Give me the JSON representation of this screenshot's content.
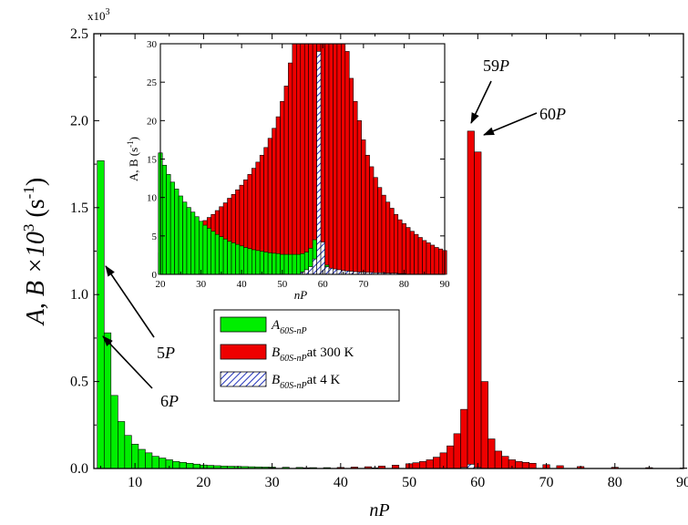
{
  "chart_data": [
    {
      "type": "bar",
      "multiplier_label": "x10",
      "multiplier_exp": "3",
      "xlabel": "nP",
      "ylabel_text": "A, B ×10",
      "ylabel_exp": "3",
      "ylabel_unit": " (s",
      "ylabel_unit_exp": "-1",
      "ylabel_close": ")",
      "xlim": [
        4,
        90
      ],
      "ylim": [
        0,
        2.5
      ],
      "xticks": [
        "10",
        "20",
        "30",
        "40",
        "50",
        "60",
        "70",
        "80",
        "90"
      ],
      "yticks": [
        "0.0",
        "0.5",
        "1.0",
        "1.5",
        "2.0",
        "2.5"
      ],
      "series": [
        {
          "name_main": "A",
          "name_sub": "60S-nP",
          "name_suffix": "",
          "color": "#00ee00",
          "x": [
            5,
            6,
            7,
            8,
            9,
            10,
            11,
            12,
            13,
            14,
            15,
            16,
            17,
            18,
            19,
            20,
            21,
            22,
            23,
            24,
            25,
            26,
            27,
            28,
            29,
            30,
            32,
            34,
            36,
            38,
            40,
            45,
            50,
            55,
            58,
            59,
            60
          ],
          "values": [
            1.77,
            0.78,
            0.42,
            0.27,
            0.19,
            0.14,
            0.11,
            0.09,
            0.07,
            0.06,
            0.05,
            0.04,
            0.035,
            0.03,
            0.025,
            0.02,
            0.018,
            0.016,
            0.014,
            0.013,
            0.012,
            0.011,
            0.01,
            0.009,
            0.008,
            0.008,
            0.007,
            0.006,
            0.005,
            0.005,
            0.004,
            0.004,
            0.003,
            0.003,
            0.005,
            0.006,
            0.004
          ]
        },
        {
          "name_main": "B",
          "name_sub": "60S-nP",
          "name_suffix": "at 300 K",
          "color": "#ee0000",
          "x": [
            30,
            35,
            40,
            42,
            44,
            46,
            48,
            50,
            51,
            52,
            53,
            54,
            55,
            56,
            57,
            58,
            59,
            60,
            61,
            62,
            63,
            64,
            65,
            66,
            67,
            68,
            70,
            72,
            75,
            80,
            85,
            90
          ],
          "values": [
            0.003,
            0.004,
            0.006,
            0.008,
            0.01,
            0.014,
            0.019,
            0.027,
            0.033,
            0.04,
            0.05,
            0.065,
            0.09,
            0.13,
            0.2,
            0.34,
            1.94,
            1.82,
            0.5,
            0.17,
            0.1,
            0.07,
            0.05,
            0.04,
            0.035,
            0.03,
            0.022,
            0.016,
            0.011,
            0.007,
            0.005,
            0.003
          ]
        },
        {
          "name_main": "B",
          "name_sub": "60S-nP",
          "name_suffix": "at  4 K",
          "color": "#3344cc",
          "x": [
            58,
            59,
            60
          ],
          "values": [
            0.006,
            0.024,
            0.006
          ]
        }
      ],
      "annotations": [
        {
          "text": "5P",
          "x": 5,
          "y": 1.05
        },
        {
          "text": "6P",
          "x": 6,
          "y": 0.73
        },
        {
          "text": "59P",
          "x": 59,
          "y": 1.94
        },
        {
          "text": "60P",
          "x": 60,
          "y": 1.82
        }
      ]
    },
    {
      "type": "bar",
      "xlabel": "nP",
      "ylabel_text": "A, B (s",
      "ylabel_exp": "-1",
      "ylabel_close": ")",
      "xlim": [
        20,
        90
      ],
      "ylim": [
        0,
        30
      ],
      "xticks": [
        "20",
        "30",
        "40",
        "50",
        "60",
        "70",
        "80",
        "90"
      ],
      "yticks": [
        "0",
        "5",
        "10",
        "15",
        "20",
        "25",
        "30"
      ],
      "series": [
        {
          "name": "A",
          "color": "#00ee00",
          "x": [
            20,
            21,
            22,
            23,
            24,
            25,
            26,
            27,
            28,
            29,
            30,
            31,
            32,
            33,
            34,
            35,
            36,
            37,
            38,
            39,
            40,
            41,
            42,
            43,
            44,
            45,
            46,
            47,
            48,
            49,
            50,
            51,
            52,
            53,
            54,
            55,
            56,
            57,
            58,
            59,
            60,
            61,
            62,
            63,
            64,
            65
          ],
          "values": [
            15.8,
            14.2,
            13.0,
            12.0,
            11.1,
            10.2,
            9.4,
            8.7,
            8.1,
            7.5,
            6.9,
            6.4,
            6.0,
            5.6,
            5.2,
            4.9,
            4.6,
            4.3,
            4.1,
            3.9,
            3.7,
            3.5,
            3.35,
            3.2,
            3.1,
            3.0,
            2.9,
            2.8,
            2.75,
            2.7,
            2.6,
            2.6,
            2.6,
            2.6,
            2.6,
            2.7,
            2.9,
            3.4,
            4.5,
            5.8,
            3.8,
            1.2,
            0.6,
            0.4,
            0.3,
            0.2
          ]
        },
        {
          "name": "B at 300 K",
          "color": "#ee0000",
          "x": [
            20,
            21,
            22,
            23,
            24,
            25,
            26,
            27,
            28,
            29,
            30,
            31,
            32,
            33,
            34,
            35,
            36,
            37,
            38,
            39,
            40,
            41,
            42,
            43,
            44,
            45,
            46,
            47,
            48,
            49,
            50,
            51,
            52,
            53,
            54,
            55,
            56,
            57,
            58,
            59,
            60,
            61,
            62,
            63,
            64,
            65,
            66,
            67,
            68,
            69,
            70,
            71,
            72,
            73,
            74,
            75,
            76,
            77,
            78,
            79,
            80,
            81,
            82,
            83,
            84,
            85,
            86,
            87,
            88,
            89,
            90
          ],
          "values": [
            2.8,
            3.0,
            3.2,
            3.5,
            3.8,
            4.2,
            4.6,
            5.0,
            5.5,
            6.0,
            6.5,
            7.0,
            7.4,
            7.8,
            8.3,
            8.8,
            9.3,
            9.9,
            10.4,
            11.0,
            11.6,
            12.3,
            13.0,
            13.8,
            14.6,
            15.5,
            16.5,
            17.7,
            19.0,
            20.5,
            22.5,
            24.5,
            27.5,
            30,
            30,
            30,
            30,
            30,
            30,
            30,
            30,
            30,
            30,
            30,
            30,
            30,
            29.0,
            25.5,
            22.5,
            20.0,
            17.5,
            15.5,
            14.0,
            12.6,
            11.3,
            10.3,
            9.4,
            8.6,
            7.8,
            7.1,
            6.6,
            6.1,
            5.6,
            5.2,
            4.8,
            4.4,
            4.1,
            3.8,
            3.5,
            3.3,
            3.1
          ]
        },
        {
          "name": "B at 4 K",
          "color": "#3344cc",
          "x": [
            55,
            56,
            57,
            58,
            59,
            60,
            61,
            62,
            63,
            64,
            65,
            66,
            67,
            68,
            69,
            70,
            71,
            72,
            73,
            74,
            75,
            76,
            77,
            78,
            79,
            80
          ],
          "values": [
            0.3,
            0.6,
            1.0,
            2.0,
            29,
            4.2,
            1.0,
            0.8,
            0.7,
            0.6,
            0.5,
            0.45,
            0.4,
            0.35,
            0.3,
            0.3,
            0.25,
            0.25,
            0.2,
            0.2,
            0.2,
            0.15,
            0.15,
            0.15,
            0.1,
            0.1
          ]
        }
      ]
    }
  ]
}
